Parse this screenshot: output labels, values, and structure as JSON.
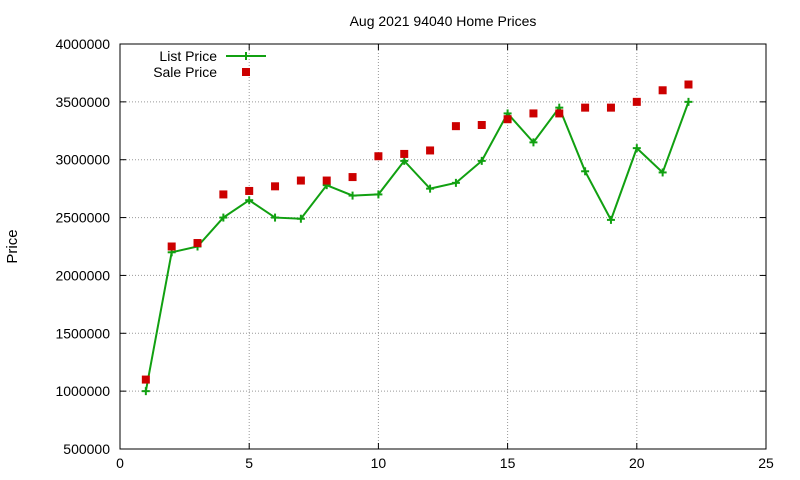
{
  "chart_data": {
    "type": "line",
    "title": "Aug 2021 94040 Home Prices",
    "xlabel": "",
    "ylabel": "Price",
    "xlim": [
      0,
      25
    ],
    "ylim": [
      500000,
      4000000
    ],
    "xticks": [
      0,
      5,
      10,
      15,
      20,
      25
    ],
    "yticks": [
      500000,
      1000000,
      1500000,
      2000000,
      2500000,
      3000000,
      3500000,
      4000000
    ],
    "grid": true,
    "legend_position": "top-left",
    "series": [
      {
        "name": "List Price",
        "type": "line",
        "marker": "plus",
        "color": "#11a011",
        "x": [
          1,
          2,
          3,
          4,
          5,
          6,
          7,
          8,
          9,
          10,
          11,
          12,
          13,
          14,
          15,
          16,
          17,
          18,
          19,
          20,
          21,
          22
        ],
        "y": [
          1000000,
          2200000,
          2250000,
          2500000,
          2650000,
          2500000,
          2490000,
          2780000,
          2690000,
          2700000,
          2990000,
          2750000,
          2800000,
          2990000,
          3400000,
          3150000,
          3450000,
          2900000,
          2480000,
          3100000,
          2890000,
          3500000
        ]
      },
      {
        "name": "Sale Price",
        "type": "scatter",
        "marker": "square",
        "color": "#cc0000",
        "x": [
          1,
          2,
          3,
          4,
          5,
          6,
          7,
          8,
          9,
          10,
          11,
          12,
          13,
          14,
          15,
          16,
          17,
          18,
          19,
          20,
          21,
          22
        ],
        "y": [
          1100000,
          2250000,
          2280000,
          2700000,
          2730000,
          2770000,
          2820000,
          2820000,
          2850000,
          3030000,
          3050000,
          3080000,
          3290000,
          3300000,
          3350000,
          3400000,
          3400000,
          3450000,
          3450000,
          3500000,
          3600000,
          3650000
        ]
      }
    ]
  }
}
